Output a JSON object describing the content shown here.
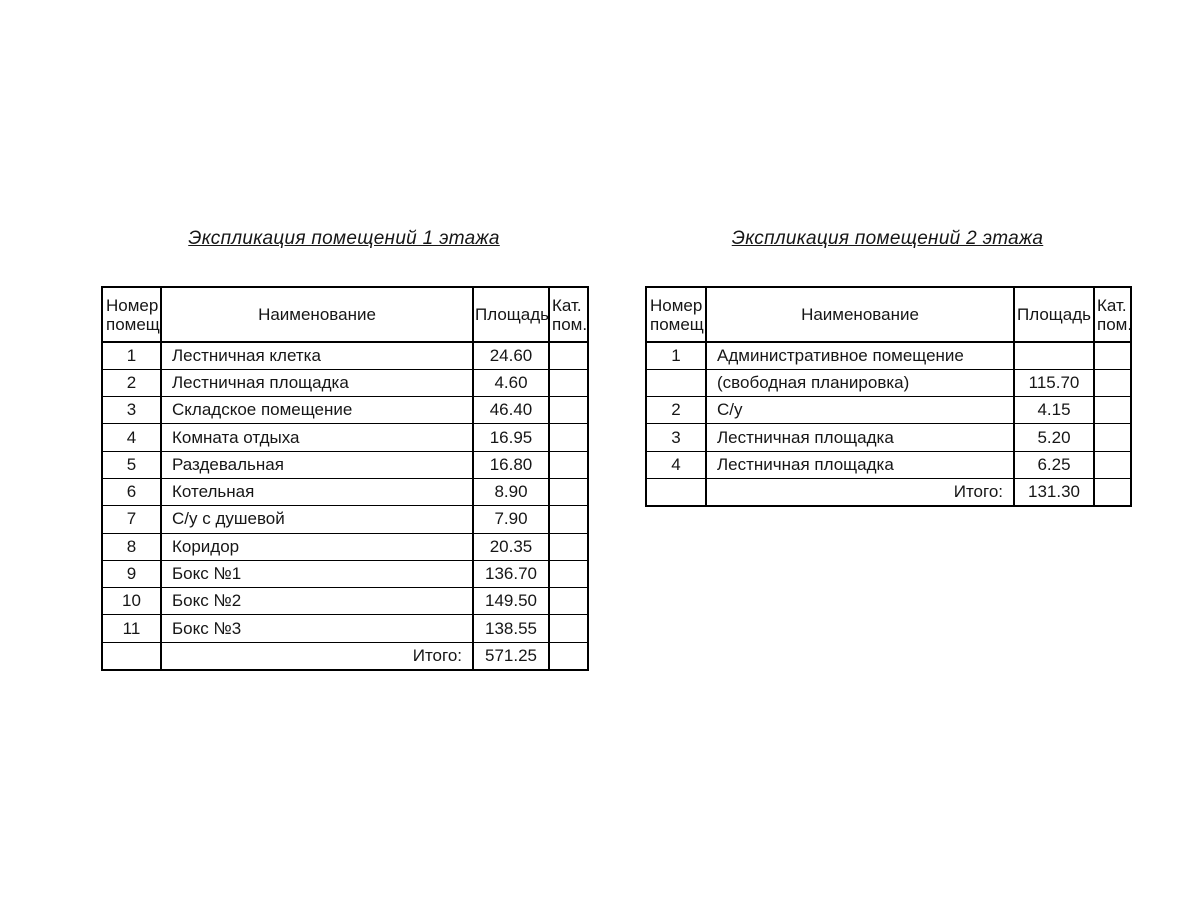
{
  "colors": {
    "background": "#ffffff",
    "line": "#000000",
    "text": "#161616"
  },
  "tables": [
    {
      "title": "Экспликация помещений 1 этажа",
      "headers": {
        "num": "Номер\nпомещ.",
        "name": "Наименование",
        "area": "Площадь",
        "cat": "Кат.\nпом."
      },
      "rows": [
        {
          "num": "1",
          "name": "Лестничная клетка",
          "area": "24.60",
          "cat": ""
        },
        {
          "num": "2",
          "name": "Лестничная площадка",
          "area": "4.60",
          "cat": ""
        },
        {
          "num": "3",
          "name": "Складское помещение",
          "area": "46.40",
          "cat": ""
        },
        {
          "num": "4",
          "name": "Комната отдыха",
          "area": "16.95",
          "cat": ""
        },
        {
          "num": "5",
          "name": "Раздевальная",
          "area": "16.80",
          "cat": ""
        },
        {
          "num": "6",
          "name": "Котельная",
          "area": "8.90",
          "cat": ""
        },
        {
          "num": "7",
          "name": "С/у с душевой",
          "area": "7.90",
          "cat": ""
        },
        {
          "num": "8",
          "name": "Коридор",
          "area": "20.35",
          "cat": ""
        },
        {
          "num": "9",
          "name": "Бокс №1",
          "area": "136.70",
          "cat": ""
        },
        {
          "num": "10",
          "name": "Бокс №2",
          "area": "149.50",
          "cat": ""
        },
        {
          "num": "11",
          "name": "Бокс №3",
          "area": "138.55",
          "cat": ""
        }
      ],
      "total": {
        "label": "Итого:",
        "value": "571.25",
        "cat": ""
      }
    },
    {
      "title": "Экспликация помещений 2 этажа",
      "headers": {
        "num": "Номер\nпомещ.",
        "name": "Наименование",
        "area": "Площадь",
        "cat": "Кат.\nпом."
      },
      "rows": [
        {
          "num": "1",
          "name": "Административное помещение",
          "area": "",
          "cat": ""
        },
        {
          "num": "",
          "name": "(свободная планировка)",
          "area": "115.70",
          "cat": ""
        },
        {
          "num": "2",
          "name": "С/у",
          "area": "4.15",
          "cat": ""
        },
        {
          "num": "3",
          "name": "Лестничная площадка",
          "area": "5.20",
          "cat": ""
        },
        {
          "num": "4",
          "name": "Лестничная площадка",
          "area": "6.25",
          "cat": ""
        }
      ],
      "total": {
        "label": "Итого:",
        "value": "131.30",
        "cat": ""
      }
    }
  ]
}
